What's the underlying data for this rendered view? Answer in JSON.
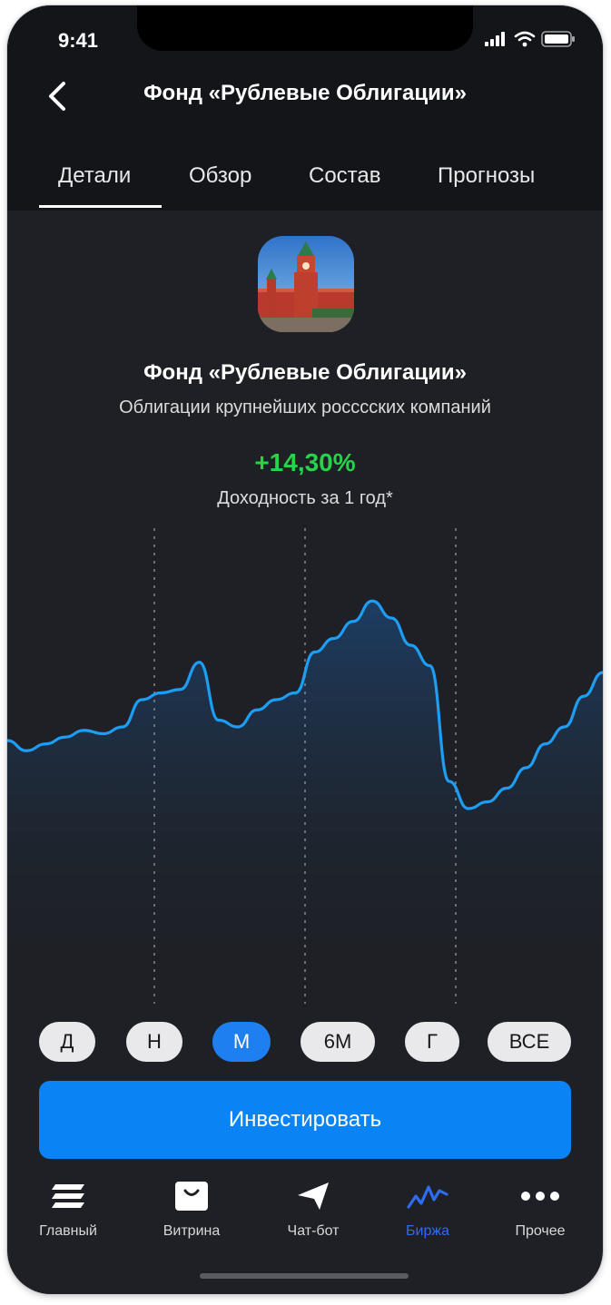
{
  "status_bar": {
    "time": "9:41"
  },
  "header": {
    "title": "Фонд «Рублевые Облигации»"
  },
  "tabs": [
    {
      "label": "Детали",
      "active": true
    },
    {
      "label": "Обзор"
    },
    {
      "label": "Состав"
    },
    {
      "label": "Прогнозы"
    }
  ],
  "fund": {
    "name": "Фонд «Рублевые Облигации»",
    "description": "Облигации крупнейших росссских компаний",
    "yield": "+14,30%",
    "yield_label": "Доходность за 1 год*"
  },
  "chart_data": {
    "type": "area",
    "values": [
      32,
      29,
      31,
      33,
      35,
      34,
      36,
      44,
      46,
      47,
      55,
      38,
      36,
      41,
      44,
      46,
      58,
      62,
      67,
      73,
      68,
      60,
      54,
      20,
      12,
      14,
      18,
      24,
      31,
      36,
      45,
      52
    ],
    "color": "#1e9df5"
  },
  "periods": [
    {
      "label": "Д"
    },
    {
      "label": "Н"
    },
    {
      "label": "М",
      "active": true
    },
    {
      "label": "6М"
    },
    {
      "label": "Г"
    },
    {
      "label": "ВСЕ"
    }
  ],
  "invest_button": "Инвестировать",
  "nav": [
    {
      "label": "Главный",
      "icon": "layers-icon"
    },
    {
      "label": "Витрина",
      "icon": "shopping-bag-icon"
    },
    {
      "label": "Чат-бот",
      "icon": "send-icon"
    },
    {
      "label": "Биржа",
      "icon": "chart-line-icon",
      "active": true
    },
    {
      "label": "Прочее",
      "icon": "more-dots-icon"
    }
  ],
  "colors": {
    "accent": "#0a84f5",
    "positive": "#27d34a",
    "active_nav": "#2f6cf0"
  }
}
